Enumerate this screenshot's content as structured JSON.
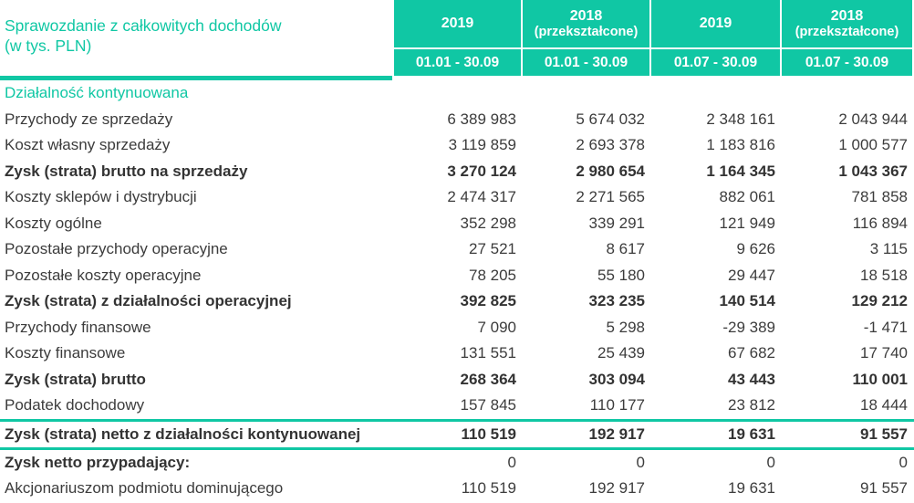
{
  "colors": {
    "accent_teal": "#10c7a4",
    "text": "#3c3c3c"
  },
  "header": {
    "title_line1": "Sprawozdanie z całkowitych dochodów",
    "title_line2": "(w tys. PLN)",
    "columns": [
      {
        "year": "2019",
        "qualifier": "",
        "period": "01.01 - 30.09"
      },
      {
        "year": "2018",
        "qualifier": "(przekształcone)",
        "period": "01.01 - 30.09"
      },
      {
        "year": "2019",
        "qualifier": "",
        "period": "01.07 - 30.09"
      },
      {
        "year": "2018",
        "qualifier": "(przekształcone)",
        "period": "01.07 - 30.09"
      }
    ]
  },
  "rows": [
    {
      "label": "Działalność kontynuowana",
      "style": "section",
      "values": [
        "",
        "",
        "",
        ""
      ]
    },
    {
      "label": "Przychody ze sprzedaży",
      "style": "plain",
      "values": [
        "6 389 983",
        "5 674 032",
        "2 348 161",
        "2 043 944"
      ]
    },
    {
      "label": "Koszt własny sprzedaży",
      "style": "plain",
      "values": [
        "3 119 859",
        "2 693 378",
        "1 183 816",
        "1 000 577"
      ]
    },
    {
      "label": "Zysk (strata) brutto na sprzedaży",
      "style": "bold",
      "values": [
        "3 270 124",
        "2 980 654",
        "1 164 345",
        "1 043 367"
      ]
    },
    {
      "label": "Koszty sklepów i dystrybucji",
      "style": "plain",
      "values": [
        "2 474 317",
        "2 271 565",
        "882 061",
        "781 858"
      ]
    },
    {
      "label": "Koszty ogólne",
      "style": "plain",
      "values": [
        "352 298",
        "339 291",
        "121 949",
        "116 894"
      ]
    },
    {
      "label": "Pozostałe przychody operacyjne",
      "style": "plain",
      "values": [
        "27 521",
        "8 617",
        "9 626",
        "3 115"
      ]
    },
    {
      "label": "Pozostałe koszty operacyjne",
      "style": "plain",
      "values": [
        "78 205",
        "55 180",
        "29 447",
        "18 518"
      ]
    },
    {
      "label": "Zysk (strata) z działalności operacyjnej",
      "style": "bold",
      "values": [
        "392 825",
        "323 235",
        "140 514",
        "129 212"
      ]
    },
    {
      "label": "Przychody finansowe",
      "style": "plain",
      "values": [
        "7 090",
        "5 298",
        "-29 389",
        "-1 471"
      ]
    },
    {
      "label": "Koszty finansowe",
      "style": "plain",
      "values": [
        "131 551",
        "25 439",
        "67 682",
        "17 740"
      ]
    },
    {
      "label": "Zysk (strata) brutto",
      "style": "bold",
      "values": [
        "268 364",
        "303 094",
        "43 443",
        "110 001"
      ]
    },
    {
      "label": "Podatek dochodowy",
      "style": "plain",
      "values": [
        "157 845",
        "110 177",
        "23 812",
        "18 444"
      ]
    },
    {
      "label": "Zysk (strata) netto z działalności kontynuowanej",
      "style": "total",
      "values": [
        "110 519",
        "192 917",
        "19 631",
        "91 557"
      ]
    },
    {
      "label": "Zysk netto przypadający:",
      "style": "labelbold",
      "values": [
        "0",
        "0",
        "0",
        "0"
      ]
    },
    {
      "label": "Akcjonariuszom podmiotu dominującego",
      "style": "plain",
      "values": [
        "110 519",
        "192 917",
        "19 631",
        "91 557"
      ]
    }
  ]
}
